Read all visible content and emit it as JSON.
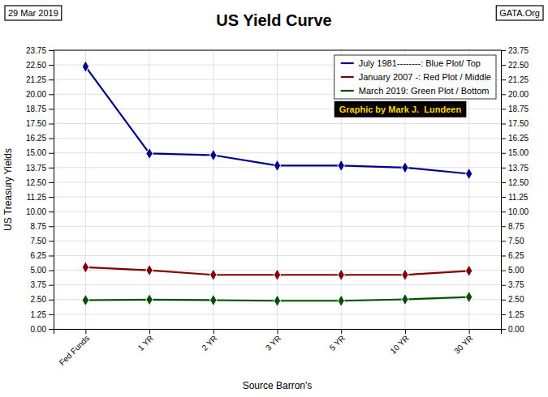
{
  "chart_data": {
    "type": "line",
    "title": "US Yield Curve",
    "x_label": "Source Barron's",
    "y_label": "US Treasury Yields",
    "annotations": [
      "29 Mar 2019",
      "GATA.Org",
      "Graphic by Mark J.  Lundeen"
    ],
    "categories": [
      "Fed Funds",
      "1 YR",
      "2 YR",
      "3 YR",
      "5 YR",
      "10 YR",
      "30 YR"
    ],
    "series": [
      {
        "name": "July 1981--------: Blue Plot/ Top",
        "color": "#00008B",
        "marker": "diamond",
        "values": [
          22.36,
          14.95,
          14.81,
          13.92,
          13.92,
          13.75,
          13.22
        ]
      },
      {
        "name": "January 2007 -: Red Plot / Middle",
        "color": "#800000",
        "marker": "diamond",
        "values": [
          5.25,
          5.0,
          4.61,
          4.61,
          4.61,
          4.61,
          4.95
        ]
      },
      {
        "name": "March 2019: Green Plot / Bottom",
        "color": "#005000",
        "marker": "diamond",
        "values": [
          2.45,
          2.5,
          2.45,
          2.4,
          2.4,
          2.52,
          2.72
        ]
      }
    ],
    "ylim": [
      0.0,
      23.75
    ],
    "yticks": [
      {
        "value": 0.0,
        "label": "0.00"
      },
      {
        "value": 1.25,
        "label": "1.25"
      },
      {
        "value": 2.5,
        "label": "2.50"
      },
      {
        "value": 3.75,
        "label": "3.75"
      },
      {
        "value": 5.0,
        "label": "5.00"
      },
      {
        "value": 6.25,
        "label": "6.25"
      },
      {
        "value": 7.5,
        "label": "7.50"
      },
      {
        "value": 8.75,
        "label": "8.75"
      },
      {
        "value": 10.0,
        "label": "10.00"
      },
      {
        "value": 11.25,
        "label": "11.25"
      },
      {
        "value": 12.5,
        "label": "12.50"
      },
      {
        "value": 13.75,
        "label": "13.75"
      },
      {
        "value": 15.0,
        "label": "15.00"
      },
      {
        "value": 16.25,
        "label": "16.25"
      },
      {
        "value": 17.5,
        "label": "17.50"
      },
      {
        "value": 18.75,
        "label": "18.75"
      },
      {
        "value": 20.0,
        "label": "20.00"
      },
      {
        "value": 21.25,
        "label": "21.25"
      },
      {
        "value": 22.5,
        "label": "22.50"
      },
      {
        "value": 23.75,
        "label": "23.75"
      }
    ],
    "y2lim": [
      0.0,
      23.75
    ],
    "y2ticks": [
      {
        "value": 0.0,
        "label": "0.00"
      },
      {
        "value": 1.25,
        "label": "1.25"
      },
      {
        "value": 2.5,
        "label": "2.50"
      },
      {
        "value": 3.75,
        "label": "3.75"
      },
      {
        "value": 5.0,
        "label": "5.00"
      },
      {
        "value": 6.25,
        "label": "6.25"
      },
      {
        "value": 7.5,
        "label": "7.50"
      },
      {
        "value": 8.75,
        "label": "8.75"
      },
      {
        "value": 10.0,
        "label": "10.00"
      },
      {
        "value": 11.25,
        "label": "11.25"
      },
      {
        "value": 12.5,
        "label": "12.50"
      },
      {
        "value": 13.75,
        "label": "13.75"
      },
      {
        "value": 15.0,
        "label": "15.00"
      },
      {
        "value": 16.25,
        "label": "16.25"
      },
      {
        "value": 17.5,
        "label": "17.50"
      },
      {
        "value": 18.75,
        "label": "18.75"
      },
      {
        "value": 20.0,
        "label": "20.00"
      },
      {
        "value": 21.25,
        "label": "21.25"
      },
      {
        "value": 22.5,
        "label": "22.50"
      },
      {
        "value": 23.75,
        "label": "23.75"
      }
    ],
    "grid": true,
    "legend": "upper right"
  }
}
